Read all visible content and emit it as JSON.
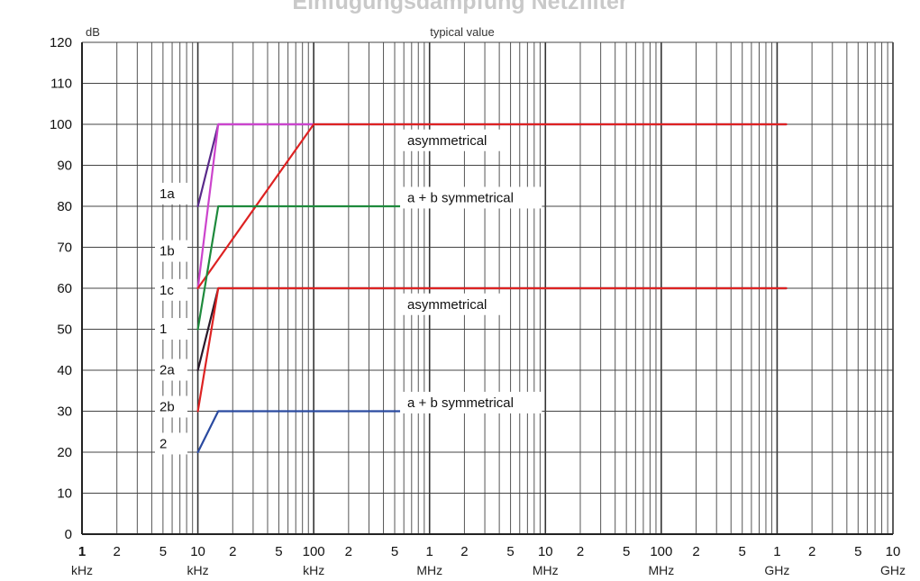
{
  "title": "Einfügungsdämpfung Netzfilter",
  "chart_data": {
    "type": "line",
    "subtitle": "typical value",
    "ylabel": "dB",
    "xscale": "log",
    "xlim_hz": [
      1000,
      10000000000
    ],
    "ylim": [
      0,
      120
    ],
    "yticks": [
      0,
      10,
      20,
      30,
      40,
      50,
      60,
      70,
      80,
      90,
      100,
      110,
      120
    ],
    "grid": true,
    "x_tick_labels": [
      {
        "hz": 1000,
        "num": "1",
        "unit": "kHz"
      },
      {
        "hz": 2000,
        "num": "2",
        "unit": ""
      },
      {
        "hz": 5000,
        "num": "5",
        "unit": ""
      },
      {
        "hz": 10000,
        "num": "10",
        "unit": "kHz"
      },
      {
        "hz": 20000,
        "num": "2",
        "unit": ""
      },
      {
        "hz": 50000,
        "num": "5",
        "unit": ""
      },
      {
        "hz": 100000,
        "num": "100",
        "unit": "kHz"
      },
      {
        "hz": 200000,
        "num": "2",
        "unit": ""
      },
      {
        "hz": 500000,
        "num": "5",
        "unit": ""
      },
      {
        "hz": 1000000,
        "num": "1",
        "unit": "MHz"
      },
      {
        "hz": 2000000,
        "num": "2",
        "unit": ""
      },
      {
        "hz": 5000000,
        "num": "5",
        "unit": ""
      },
      {
        "hz": 10000000,
        "num": "10",
        "unit": "MHz"
      },
      {
        "hz": 20000000,
        "num": "2",
        "unit": ""
      },
      {
        "hz": 50000000,
        "num": "5",
        "unit": ""
      },
      {
        "hz": 100000000,
        "num": "100",
        "unit": "MHz"
      },
      {
        "hz": 200000000,
        "num": "2",
        "unit": ""
      },
      {
        "hz": 500000000,
        "num": "5",
        "unit": ""
      },
      {
        "hz": 1000000000,
        "num": "1",
        "unit": "GHz"
      },
      {
        "hz": 2000000000,
        "num": "2",
        "unit": ""
      },
      {
        "hz": 5000000000,
        "num": "5",
        "unit": ""
      },
      {
        "hz": 10000000000,
        "num": "10",
        "unit": "GHz"
      }
    ],
    "series": [
      {
        "name": "1a",
        "color": "#5a2a8a",
        "points": [
          [
            10000,
            80
          ],
          [
            15000,
            100
          ],
          [
            1200000000,
            100
          ]
        ]
      },
      {
        "name": "1b",
        "color": "#cc44cc",
        "points": [
          [
            10000,
            60
          ],
          [
            15000,
            100
          ],
          [
            100000,
            100
          ]
        ]
      },
      {
        "name": "1c",
        "color": "#dd2222",
        "points": [
          [
            10000,
            60
          ],
          [
            100000,
            100
          ],
          [
            1200000000,
            100
          ]
        ]
      },
      {
        "name": "1",
        "color": "#1e8a3c",
        "points": [
          [
            10000,
            50
          ],
          [
            15000,
            80
          ],
          [
            1000000,
            80
          ]
        ]
      },
      {
        "name": "2a",
        "color": "#2a1a2a",
        "points": [
          [
            10000,
            40
          ],
          [
            15000,
            60
          ],
          [
            1200000000,
            60
          ]
        ]
      },
      {
        "name": "2b",
        "color": "#dd2222",
        "points": [
          [
            10000,
            30
          ],
          [
            15000,
            60
          ],
          [
            1200000000,
            60
          ]
        ]
      },
      {
        "name": "2",
        "color": "#2a4aa0",
        "points": [
          [
            10000,
            20
          ],
          [
            15000,
            30
          ],
          [
            1000000,
            30
          ]
        ]
      }
    ],
    "annotations": [
      {
        "text": "asymmetrical",
        "hz": 1100000,
        "db": 95
      },
      {
        "text": "a + b symmetrical",
        "hz": 1100000,
        "db": 81
      },
      {
        "text": "asymmetrical",
        "hz": 1100000,
        "db": 55
      },
      {
        "text": "a + b symmetrical",
        "hz": 1100000,
        "db": 31
      }
    ],
    "curve_labels": [
      {
        "text": "1a",
        "db": 82
      },
      {
        "text": "1b",
        "db": 68
      },
      {
        "text": "1c",
        "db": 58.5
      },
      {
        "text": "1",
        "db": 49
      },
      {
        "text": "2a",
        "db": 39
      },
      {
        "text": "2b",
        "db": 30
      },
      {
        "text": "2",
        "db": 21
      }
    ]
  }
}
